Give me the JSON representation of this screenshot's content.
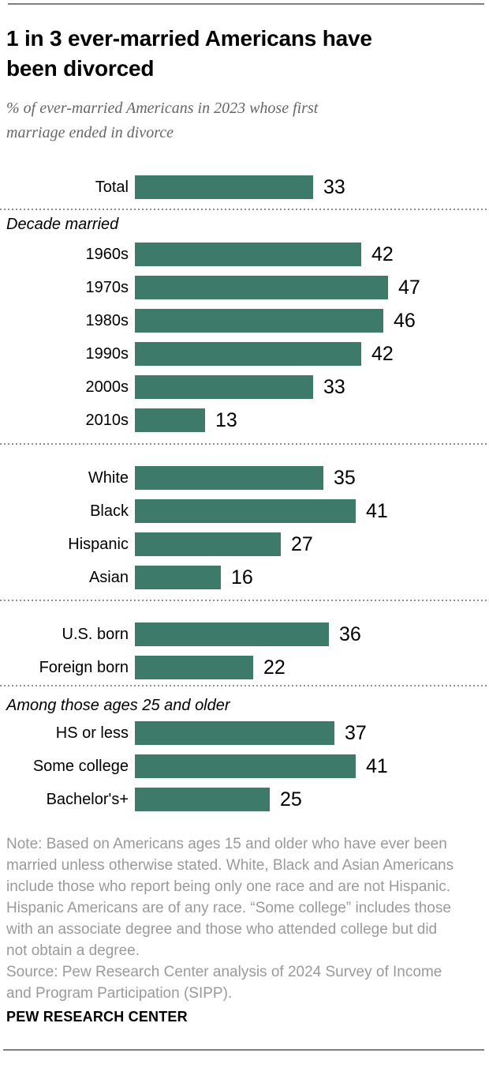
{
  "chart_data": {
    "type": "bar",
    "orientation": "horizontal",
    "title": "1 in 3 ever-married Americans have\nbeen divorced",
    "subtitle": "% of ever-married Americans in 2023 whose first\nmarriage ended in divorce",
    "unit": "%",
    "xlim": [
      0,
      50
    ],
    "grid": false,
    "legend": false,
    "bar_color": "#3d7a6a",
    "value_labels": "end-of-bar",
    "groups": [
      {
        "header": null,
        "rows": [
          {
            "label": "Total",
            "value": 33
          }
        ]
      },
      {
        "header": "Decade married",
        "rows": [
          {
            "label": "1960s",
            "value": 42
          },
          {
            "label": "1970s",
            "value": 47
          },
          {
            "label": "1980s",
            "value": 46
          },
          {
            "label": "1990s",
            "value": 42
          },
          {
            "label": "2000s",
            "value": 33
          },
          {
            "label": "2010s",
            "value": 13
          }
        ]
      },
      {
        "header": null,
        "rows": [
          {
            "label": "White",
            "value": 35
          },
          {
            "label": "Black",
            "value": 41
          },
          {
            "label": "Hispanic",
            "value": 27
          },
          {
            "label": "Asian",
            "value": 16
          }
        ]
      },
      {
        "header": null,
        "rows": [
          {
            "label": "U.S. born",
            "value": 36
          },
          {
            "label": "Foreign born",
            "value": 22
          }
        ]
      },
      {
        "header": "Among those ages 25 and older",
        "rows": [
          {
            "label": "HS or less",
            "value": 37
          },
          {
            "label": "Some college",
            "value": 41
          },
          {
            "label": "Bachelor's+",
            "value": 25
          }
        ]
      }
    ]
  },
  "footer": {
    "note": "Note: Based on Americans ages 15 and older who have ever been\nmarried unless otherwise stated. White, Black and Asian Americans\ninclude those who report being only one race and are not Hispanic.\nHispanic Americans are of any race. “Some college” includes those\nwith an associate degree and those who attended college but did\nnot obtain a degree.\nSource: Pew Research Center analysis of 2024 Survey of Income\nand Program Participation (SIPP).",
    "branding": "PEW RESEARCH CENTER"
  }
}
